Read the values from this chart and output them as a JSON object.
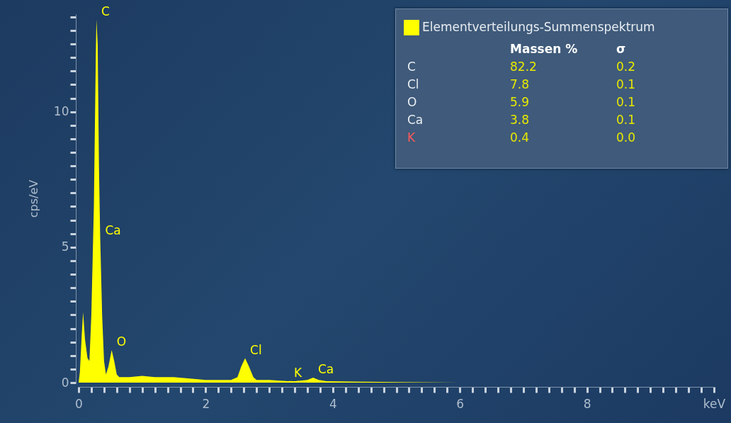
{
  "chart_data": {
    "type": "area",
    "ylabel": "cps/eV",
    "legend": "top right",
    "marker": "none",
    "grid": false,
    "xlim": [
      0,
      10
    ],
    "xticks": [
      0,
      {
        "value": 0.2,
        "label": null
      },
      {
        "value": 0.4,
        "label": null
      },
      {
        "value": 0.6,
        "label": null
      },
      {
        "value": 0.8,
        "label": null
      },
      {
        "value": 1,
        "label": null
      },
      {
        "value": 1.2,
        "label": null
      },
      {
        "value": 1.4,
        "label": null
      },
      {
        "value": 1.6,
        "label": null
      },
      {
        "value": 1.8,
        "label": null
      },
      2,
      {
        "value": 2.2,
        "label": null
      },
      {
        "value": 2.4,
        "label": null
      },
      {
        "value": 2.6,
        "label": null
      },
      {
        "value": 2.8,
        "label": null
      },
      {
        "value": 3,
        "label": null
      },
      {
        "value": 3.2,
        "label": null
      },
      {
        "value": 3.4,
        "label": null
      },
      {
        "value": 3.6,
        "label": null
      },
      {
        "value": 3.8,
        "label": null
      },
      4,
      {
        "value": 4.2,
        "label": null
      },
      {
        "value": 4.4,
        "label": null
      },
      {
        "value": 4.6,
        "label": null
      },
      {
        "value": 4.8,
        "label": null
      },
      {
        "value": 5,
        "label": null
      },
      {
        "value": 5.2,
        "label": null
      },
      {
        "value": 5.4,
        "label": null
      },
      {
        "value": 5.6,
        "label": null
      },
      {
        "value": 5.8,
        "label": null
      },
      6,
      {
        "value": 6.2,
        "label": null
      },
      {
        "value": 6.4,
        "label": null
      },
      {
        "value": 6.6,
        "label": null
      },
      {
        "value": 6.8,
        "label": null
      },
      {
        "value": 7,
        "label": null
      },
      {
        "value": 7.2,
        "label": null
      },
      {
        "value": 7.4,
        "label": null
      },
      {
        "value": 7.6,
        "label": null
      },
      {
        "value": 7.8,
        "label": null
      },
      8,
      {
        "value": 8.2,
        "label": null
      },
      {
        "value": 8.4,
        "label": null
      },
      {
        "value": 8.6,
        "label": null
      },
      {
        "value": 8.8,
        "label": null
      },
      {
        "value": 9,
        "label": null
      },
      {
        "value": 9.2,
        "label": null
      },
      {
        "value": 9.4,
        "label": null
      },
      {
        "value": 9.6,
        "label": null
      },
      {
        "value": 9.8,
        "label": null
      },
      {
        "value": 10,
        "label": "keV"
      }
    ],
    "ylim": [
      0,
      13.6
    ],
    "yticks": [
      0,
      {
        "value": 0.5,
        "label": null
      },
      {
        "value": 1,
        "label": null
      },
      {
        "value": 1.5,
        "label": null
      },
      {
        "value": 2,
        "label": null
      },
      {
        "value": 2.5,
        "label": null
      },
      {
        "value": 3,
        "label": null
      },
      {
        "value": 3.5,
        "label": null
      },
      {
        "value": 4,
        "label": null
      },
      {
        "value": 4.5,
        "label": null
      },
      5,
      {
        "value": 5.5,
        "label": null
      },
      {
        "value": 6,
        "label": null
      },
      {
        "value": 6.5,
        "label": null
      },
      {
        "value": 7,
        "label": null
      },
      {
        "value": 7.5,
        "label": null
      },
      {
        "value": 8,
        "label": null
      },
      {
        "value": 8.5,
        "label": null
      },
      {
        "value": 9,
        "label": null
      },
      {
        "value": 9.5,
        "label": null
      },
      10,
      {
        "value": 10.5,
        "label": null
      },
      {
        "value": 11,
        "label": null
      },
      {
        "value": 11.5,
        "label": null
      },
      {
        "value": 12,
        "label": null
      },
      {
        "value": 12.5,
        "label": null
      },
      {
        "value": 13,
        "label": null
      },
      {
        "value": 13.5,
        "label": null
      }
    ],
    "series": [
      {
        "name": "Elementverteilungs-Summenspektrum",
        "color": "#ffff00",
        "x": [
          0,
          0.02,
          0.05,
          0.07,
          0.1,
          0.14,
          0.17,
          0.2,
          0.24,
          0.27,
          0.28,
          0.3,
          0.32,
          0.34,
          0.37,
          0.4,
          0.43,
          0.47,
          0.52,
          0.56,
          0.6,
          0.64,
          0.8,
          1.0,
          1.2,
          1.5,
          2.0,
          2.4,
          2.5,
          2.56,
          2.62,
          2.68,
          2.75,
          2.8,
          3.0,
          3.3,
          3.31,
          3.4,
          3.6,
          3.69,
          3.78,
          3.9,
          4.5,
          5.0,
          6.0
        ],
        "values": [
          0,
          0.4,
          1.8,
          2.6,
          1.6,
          0.9,
          0.8,
          2.5,
          6.5,
          12.0,
          13.4,
          12.5,
          8.0,
          5.3,
          2.5,
          0.8,
          0.3,
          0.6,
          1.2,
          0.8,
          0.3,
          0.2,
          0.2,
          0.25,
          0.2,
          0.2,
          0.1,
          0.1,
          0.2,
          0.6,
          0.9,
          0.6,
          0.2,
          0.1,
          0.1,
          0.05,
          0.06,
          0.05,
          0.1,
          0.18,
          0.1,
          0.05,
          0.03,
          0.02,
          0
        ]
      }
    ],
    "annotations": [
      {
        "text": "C",
        "x": 0.28,
        "y": 13.4
      },
      {
        "text": "Ca",
        "x": 0.34,
        "y": 5.3
      },
      {
        "text": "O",
        "x": 0.52,
        "y": 1.2
      },
      {
        "text": "Cl",
        "x": 2.62,
        "y": 0.9
      },
      {
        "text": "K",
        "x": 3.31,
        "y": 0.06
      },
      {
        "text": "Ca",
        "x": 3.69,
        "y": 0.18
      },
      "Massen %",
      "σ",
      "C",
      "82.2",
      "0.2",
      "Cl",
      "7.8",
      "0.1",
      "O",
      "5.9",
      "0.1",
      "Ca",
      "3.8",
      "0.1",
      "K",
      "0.4",
      "0.0"
    ]
  }
}
